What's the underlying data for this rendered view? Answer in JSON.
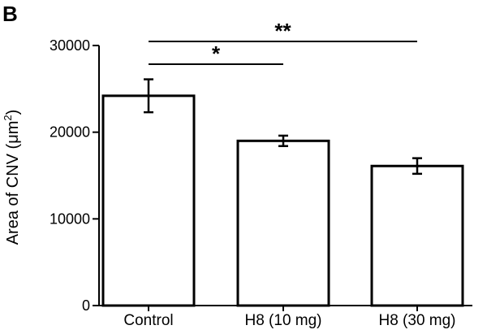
{
  "panel_label": "B",
  "chart_data": {
    "type": "bar",
    "title": "",
    "xlabel": "",
    "ylabel": "Area of CNV (μm²)",
    "ylabel_text": "Area of CNV (μm",
    "ylabel_sup": "2",
    "ylabel_close": ")",
    "ylim": [
      0,
      30000
    ],
    "yticks": [
      0,
      10000,
      20000,
      30000
    ],
    "ytick_labels": [
      "0",
      "10000",
      "20000",
      "30000"
    ],
    "categories": [
      "Control",
      "H8 (10 mg)",
      "H8 (30 mg)"
    ],
    "values": [
      24200,
      19000,
      16100
    ],
    "errors": [
      1900,
      600,
      900
    ],
    "significance": [
      {
        "from": 0,
        "to": 1,
        "label": "*"
      },
      {
        "from": 0,
        "to": 2,
        "label": "**"
      }
    ],
    "bar_fill": "#ffffff",
    "bar_stroke": "#000000"
  }
}
